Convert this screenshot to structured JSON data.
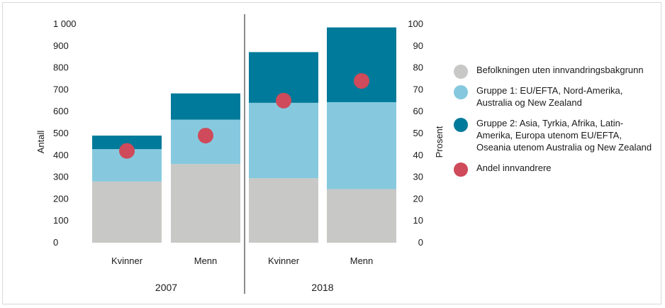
{
  "chart_data": {
    "type": "bar",
    "stacked": true,
    "groups": [
      "2007",
      "2018"
    ],
    "categories": [
      "Kvinner",
      "Menn",
      "Kvinner",
      "Menn"
    ],
    "category_group": [
      "2007",
      "2007",
      "2018",
      "2018"
    ],
    "ylabel": "Antall",
    "y2label": "Prosent",
    "ylim": [
      0,
      1000
    ],
    "y2lim": [
      0,
      100
    ],
    "yticks": [
      "0",
      "100",
      "200",
      "300",
      "400",
      "500",
      "600",
      "700",
      "800",
      "900",
      "1 000"
    ],
    "y2ticks": [
      "0",
      "10",
      "20",
      "30",
      "40",
      "50",
      "60",
      "70",
      "80",
      "90",
      "100"
    ],
    "series": [
      {
        "name": "Befolkningen uten innvandringsbakgrunn",
        "color": "#c8c8c6",
        "values": [
          280,
          360,
          295,
          245
        ]
      },
      {
        "name": "Gruppe 1: EU/EFTA, Nord-Amerika, Australia og New Zealand",
        "color": "#86c9de",
        "values": [
          148,
          203,
          345,
          398
        ]
      },
      {
        "name": "Gruppe 2: Asia, Tyrkia, Afrika, Latin-Amerika, Europa utenom EU/EFTA, Oseania utenom Australia og New Zealand",
        "color": "#007a9a",
        "values": [
          62,
          120,
          232,
          342
        ]
      },
      {
        "name": "Andel innvandrere",
        "color": "#cf4a5a",
        "type": "scatter",
        "axis": "right",
        "values": [
          42,
          49,
          65,
          74
        ]
      }
    ],
    "grid": false,
    "legend": "right"
  }
}
